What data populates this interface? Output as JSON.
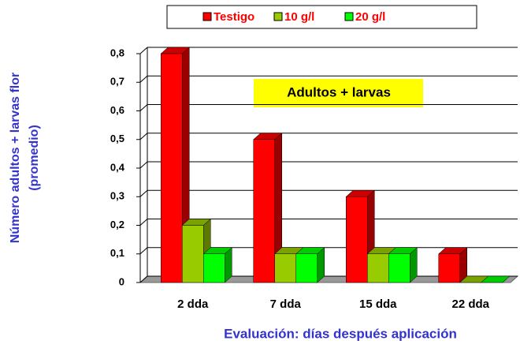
{
  "chart_data": {
    "type": "bar3d",
    "annotation": "Adultos + larvas",
    "y_label": [
      "Número adultos + larvas flor",
      "(promedio)"
    ],
    "x_label": "Evaluación: días después aplicación",
    "categories": [
      "2 dda",
      "7 dda",
      "15 dda",
      "22 dda"
    ],
    "series": [
      {
        "name": "Testigo",
        "color": "#ff0000",
        "values": [
          0.8,
          0.5,
          0.3,
          0.1
        ]
      },
      {
        "name": "10 g/l",
        "color": "#99cc00",
        "values": [
          0.2,
          0.1,
          0.1,
          0
        ]
      },
      {
        "name": "20 g/l",
        "color": "#00ff00",
        "values": [
          0.1,
          0.1,
          0.1,
          0
        ]
      }
    ],
    "ylim": [
      0,
      0.8
    ],
    "yticks": [
      0,
      {
        "value": 0.1,
        "label": "0,1"
      },
      {
        "value": 0.2,
        "label": "0,2"
      },
      {
        "value": 0.3,
        "label": "0,3"
      },
      {
        "value": 0.4,
        "label": "0,4"
      },
      {
        "value": 0.5,
        "label": "0,5"
      },
      {
        "value": 0.6,
        "label": "0,6"
      },
      {
        "value": 0.7,
        "label": "0,7"
      },
      {
        "value": 0.8,
        "label": "0,8"
      }
    ],
    "grid": true
  }
}
